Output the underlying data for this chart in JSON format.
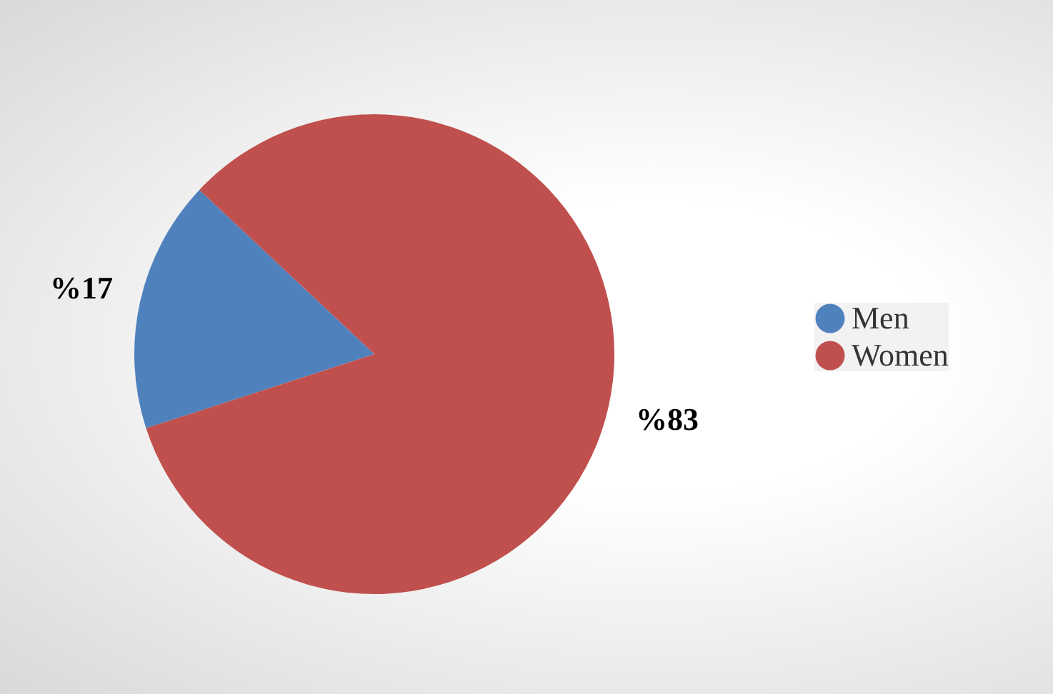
{
  "chart_data": {
    "type": "pie",
    "categories": [
      "Men",
      "Women"
    ],
    "values": [
      17,
      83
    ],
    "colors": [
      "#4f81bd",
      "#c0504d"
    ],
    "value_labels": [
      "%17",
      "%83"
    ],
    "legend": "right"
  }
}
